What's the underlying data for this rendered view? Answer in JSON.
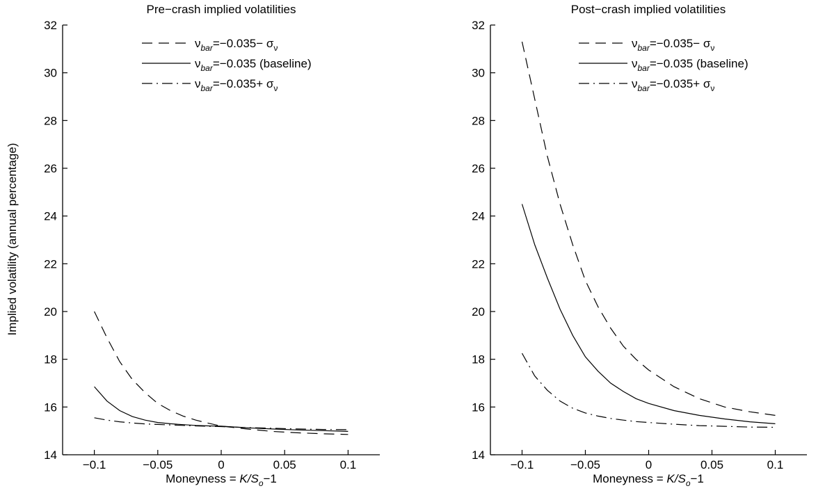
{
  "figure": {
    "ylabel": "Implied volatility (annual percentage)"
  },
  "chart_data": [
    {
      "type": "line",
      "title": "Pre−crash implied volatilities",
      "xlabel": {
        "prefix": "Moneyness = ",
        "var": "K/S",
        "sub": "o",
        "suffix": "−1"
      },
      "xlim": [
        -0.125,
        0.125
      ],
      "ylim": [
        14,
        32
      ],
      "xticks": [
        -0.1,
        -0.05,
        0,
        0.05,
        0.1
      ],
      "xtick_labels": [
        "−0.1",
        "−0.05",
        "0",
        "0.05",
        "0.1"
      ],
      "yticks": [
        14,
        16,
        18,
        20,
        22,
        24,
        26,
        28,
        30,
        32
      ],
      "ytick_labels": [
        "14",
        "16",
        "18",
        "20",
        "22",
        "24",
        "26",
        "28",
        "30",
        "32"
      ],
      "legend_position": "top-right",
      "series": [
        {
          "legend": {
            "sym": "ν",
            "sub": "bar",
            "rest": "=−0.035− σ",
            "rest_sub": "ν"
          },
          "style": "dashed",
          "x": [
            -0.1,
            -0.09,
            -0.08,
            -0.07,
            -0.06,
            -0.05,
            -0.04,
            -0.03,
            -0.02,
            -0.01,
            0,
            0.02,
            0.04,
            0.06,
            0.08,
            0.1
          ],
          "values": [
            20.0,
            18.9,
            17.9,
            17.15,
            16.6,
            16.15,
            15.85,
            15.62,
            15.45,
            15.32,
            15.2,
            15.08,
            14.98,
            14.92,
            14.88,
            14.85
          ]
        },
        {
          "legend": {
            "sym": "ν",
            "sub": "bar",
            "rest": "=−0.035 (baseline)",
            "rest_sub": ""
          },
          "style": "solid",
          "x": [
            -0.1,
            -0.09,
            -0.08,
            -0.07,
            -0.06,
            -0.05,
            -0.04,
            -0.03,
            -0.02,
            -0.01,
            0,
            0.02,
            0.04,
            0.06,
            0.08,
            0.1
          ],
          "values": [
            16.85,
            16.25,
            15.85,
            15.6,
            15.45,
            15.35,
            15.3,
            15.26,
            15.23,
            15.21,
            15.2,
            15.13,
            15.08,
            15.04,
            15.01,
            14.98
          ]
        },
        {
          "legend": {
            "sym": "ν",
            "sub": "bar",
            "rest": "=−0.035+ σ",
            "rest_sub": "ν"
          },
          "style": "dashdot",
          "x": [
            -0.1,
            -0.09,
            -0.08,
            -0.07,
            -0.06,
            -0.05,
            -0.04,
            -0.03,
            -0.02,
            -0.01,
            0,
            0.02,
            0.04,
            0.06,
            0.08,
            0.1
          ],
          "values": [
            15.55,
            15.45,
            15.38,
            15.33,
            15.29,
            15.27,
            15.25,
            15.23,
            15.21,
            15.19,
            15.18,
            15.14,
            15.11,
            15.08,
            15.06,
            15.05
          ]
        }
      ]
    },
    {
      "type": "line",
      "title": "Post−crash implied volatilities",
      "xlabel": {
        "prefix": "Moneyness = ",
        "var": "K/S",
        "sub": "o",
        "suffix": "−1"
      },
      "xlim": [
        -0.125,
        0.125
      ],
      "ylim": [
        14,
        32
      ],
      "xticks": [
        -0.1,
        -0.05,
        0,
        0.05,
        0.1
      ],
      "xtick_labels": [
        "−0.1",
        "−0.05",
        "0",
        "0.05",
        "0.1"
      ],
      "yticks": [
        14,
        16,
        18,
        20,
        22,
        24,
        26,
        28,
        30,
        32
      ],
      "ytick_labels": [
        "14",
        "16",
        "18",
        "20",
        "22",
        "24",
        "26",
        "28",
        "30",
        "32"
      ],
      "legend_position": "top-right",
      "series": [
        {
          "legend": {
            "sym": "ν",
            "sub": "bar",
            "rest": "=−0.035− σ",
            "rest_sub": "ν"
          },
          "style": "dashed",
          "x": [
            -0.1,
            -0.09,
            -0.08,
            -0.07,
            -0.06,
            -0.05,
            -0.04,
            -0.03,
            -0.02,
            -0.01,
            0,
            0.02,
            0.04,
            0.06,
            0.08,
            0.1
          ],
          "values": [
            31.3,
            28.9,
            26.5,
            24.5,
            22.8,
            21.3,
            20.2,
            19.3,
            18.55,
            18.0,
            17.55,
            16.85,
            16.35,
            16.0,
            15.8,
            15.65
          ]
        },
        {
          "legend": {
            "sym": "ν",
            "sub": "bar",
            "rest": "=−0.035 (baseline)",
            "rest_sub": ""
          },
          "style": "solid",
          "x": [
            -0.1,
            -0.09,
            -0.08,
            -0.07,
            -0.06,
            -0.05,
            -0.04,
            -0.03,
            -0.02,
            -0.01,
            0,
            0.02,
            0.04,
            0.06,
            0.08,
            0.1
          ],
          "values": [
            24.5,
            22.8,
            21.4,
            20.1,
            19.0,
            18.1,
            17.5,
            17.0,
            16.65,
            16.35,
            16.15,
            15.85,
            15.65,
            15.5,
            15.38,
            15.3
          ]
        },
        {
          "legend": {
            "sym": "ν",
            "sub": "bar",
            "rest": "=−0.035+ σ",
            "rest_sub": "ν"
          },
          "style": "dashdot",
          "x": [
            -0.1,
            -0.09,
            -0.08,
            -0.07,
            -0.06,
            -0.05,
            -0.04,
            -0.03,
            -0.02,
            -0.01,
            0,
            0.02,
            0.04,
            0.06,
            0.08,
            0.1
          ],
          "values": [
            18.25,
            17.3,
            16.7,
            16.25,
            15.95,
            15.75,
            15.62,
            15.52,
            15.45,
            15.39,
            15.35,
            15.28,
            15.22,
            15.19,
            15.16,
            15.15
          ]
        }
      ]
    }
  ]
}
